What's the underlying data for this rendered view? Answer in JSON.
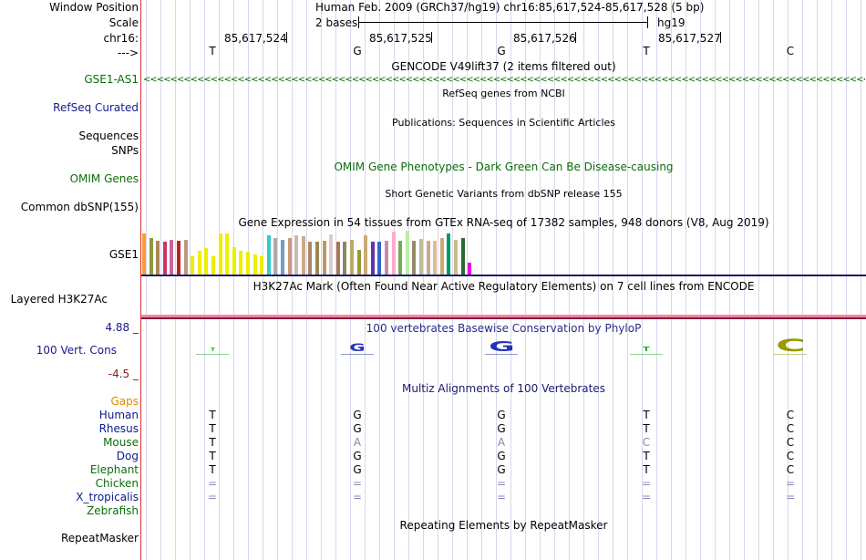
{
  "header": {
    "window_position_label": "Window Position",
    "scale_label": "Scale",
    "chrom_label": "chr16:",
    "arrow_label": "--->",
    "position_text": "Human Feb. 2009 (GRCh37/hg19)   chr16:85,617,524-85,617,528 (5 bp)",
    "scale_text": "2 bases",
    "assembly": "hg19",
    "coords": [
      "85,617,524",
      "85,617,525",
      "85,617,526",
      "85,617,527"
    ],
    "bases": [
      "T",
      "G",
      "G",
      "T",
      "C"
    ]
  },
  "tracks": {
    "gencode_title": "GENCODE V49lift37 (2 items filtered out)",
    "gencode_label": "GSE1-AS1",
    "refseq_title": "RefSeq genes from NCBI",
    "refseq_label": "RefSeq Curated",
    "pubs_title": "Publications: Sequences in Scientific Articles",
    "seq_label": "Sequences",
    "snps_label": "SNPs",
    "omim_title": "OMIM Gene Phenotypes - Dark Green Can Be Disease-causing",
    "omim_label": "OMIM Genes",
    "dbsnp_title": "Short Genetic Variants from dbSNP release 155",
    "dbsnp_label": "Common dbSNP(155)",
    "gtex_title": "Gene Expression in 54 tissues from GTEx RNA-seq of 17382 samples, 948 donors (V8, Aug 2019)",
    "gtex_label": "GSE1",
    "h3k_title": "H3K27Ac Mark (Often Found Near Active Regulatory Elements) on 7 cell lines from ENCODE",
    "h3k_label": "Layered H3K27Ac",
    "cons_title": "100 vertebrates Basewise Conservation by PhyloP",
    "cons_label": "100 Vert. Cons",
    "cons_max": "4.88 _",
    "cons_min": "-4.5 _",
    "multiz_title": "Multiz Alignments of 100 Vertebrates",
    "repeat_title": "Repeating Elements by RepeatMasker",
    "repeat_label": "RepeatMasker"
  },
  "species": [
    {
      "name": "Gaps",
      "color": "#d98c00",
      "bases": [
        "",
        "",
        "",
        "",
        ""
      ]
    },
    {
      "name": "Human",
      "color": "#0a1a8c",
      "bases": [
        "T",
        "G",
        "G",
        "T",
        "C"
      ]
    },
    {
      "name": "Rhesus",
      "color": "#0a1a8c",
      "bases": [
        "T",
        "G",
        "G",
        "T",
        "C"
      ]
    },
    {
      "name": "Mouse",
      "color": "#0a6e0a",
      "bases": [
        "T",
        "A",
        "A",
        "C",
        "C"
      ]
    },
    {
      "name": "Dog",
      "color": "#0a1a8c",
      "bases": [
        "T",
        "G",
        "G",
        "T",
        "C"
      ]
    },
    {
      "name": "Elephant",
      "color": "#0a6e0a",
      "bases": [
        "T",
        "G",
        "G",
        "T",
        "C"
      ]
    },
    {
      "name": "Chicken",
      "color": "#0a6e0a",
      "bases": [
        "=",
        "=",
        "=",
        "=",
        "="
      ]
    },
    {
      "name": "X_tropicalis",
      "color": "#0a1a8c",
      "bases": [
        "=",
        "=",
        "=",
        "=",
        "="
      ]
    },
    {
      "name": "Zebrafish",
      "color": "#0a6e0a",
      "bases": [
        "",
        "",
        "",
        "",
        ""
      ]
    }
  ],
  "gtex_bars": [
    {
      "color": "#ff9933",
      "value": 45
    },
    {
      "color": "#8c9a3c",
      "value": 40
    },
    {
      "color": "#aa8855",
      "value": 37
    },
    {
      "color": "#cc3366",
      "value": 36
    },
    {
      "color": "#cc6699",
      "value": 38
    },
    {
      "color": "#bb2222",
      "value": 37
    },
    {
      "color": "#b89a80",
      "value": 38
    },
    {
      "color": "#eeee00",
      "value": 20
    },
    {
      "color": "#eeee00",
      "value": 26
    },
    {
      "color": "#eeee00",
      "value": 29
    },
    {
      "color": "#eeee00",
      "value": 20
    },
    {
      "color": "#eeee00",
      "value": 45
    },
    {
      "color": "#eeee00",
      "value": 45
    },
    {
      "color": "#eeee00",
      "value": 30
    },
    {
      "color": "#eeee00",
      "value": 26
    },
    {
      "color": "#eeee00",
      "value": 25
    },
    {
      "color": "#eeee00",
      "value": 22
    },
    {
      "color": "#eeee00",
      "value": 20
    },
    {
      "color": "#33cccc",
      "value": 43
    },
    {
      "color": "#aaaaaa",
      "value": 40
    },
    {
      "color": "#7799cc",
      "value": 38
    },
    {
      "color": "#cc9977",
      "value": 40
    },
    {
      "color": "#ccbbaa",
      "value": 43
    },
    {
      "color": "#ccaa88",
      "value": 42
    },
    {
      "color": "#aa8866",
      "value": 36
    },
    {
      "color": "#998855",
      "value": 36
    },
    {
      "color": "#bb9966",
      "value": 37
    },
    {
      "color": "#ddcccc",
      "value": 44
    },
    {
      "color": "#aa7755",
      "value": 36
    },
    {
      "color": "#888866",
      "value": 36
    },
    {
      "color": "#bbaa66",
      "value": 38
    },
    {
      "color": "#999933",
      "value": 27
    },
    {
      "color": "#ccaa77",
      "value": 43
    },
    {
      "color": "#6633aa",
      "value": 36
    },
    {
      "color": "#3366cc",
      "value": 36
    },
    {
      "color": "#cc88aa",
      "value": 37
    },
    {
      "color": "#ffaacc",
      "value": 47
    },
    {
      "color": "#77aa55",
      "value": 37
    },
    {
      "color": "#bbeeaa",
      "value": 48
    },
    {
      "color": "#998866",
      "value": 37
    },
    {
      "color": "#bbbb99",
      "value": 39
    },
    {
      "color": "#ccaa88",
      "value": 37
    },
    {
      "color": "#ddbb99",
      "value": 37
    },
    {
      "color": "#ccaa77",
      "value": 40
    },
    {
      "color": "#009966",
      "value": 45
    },
    {
      "color": "#ccbb88",
      "value": 38
    },
    {
      "color": "#336633",
      "value": 40
    },
    {
      "color": "#ee00ee",
      "value": 13
    }
  ],
  "conservation": [
    {
      "letter": "T",
      "value": 0.5,
      "color": "#22aa22"
    },
    {
      "letter": "G",
      "value": 1.8,
      "color": "#2233bb"
    },
    {
      "letter": "G",
      "value": 2.5,
      "color": "#2233bb"
    },
    {
      "letter": "T",
      "value": 1.2,
      "color": "#22aa22"
    },
    {
      "letter": "C",
      "value": 2.9,
      "color": "#999900"
    }
  ]
}
